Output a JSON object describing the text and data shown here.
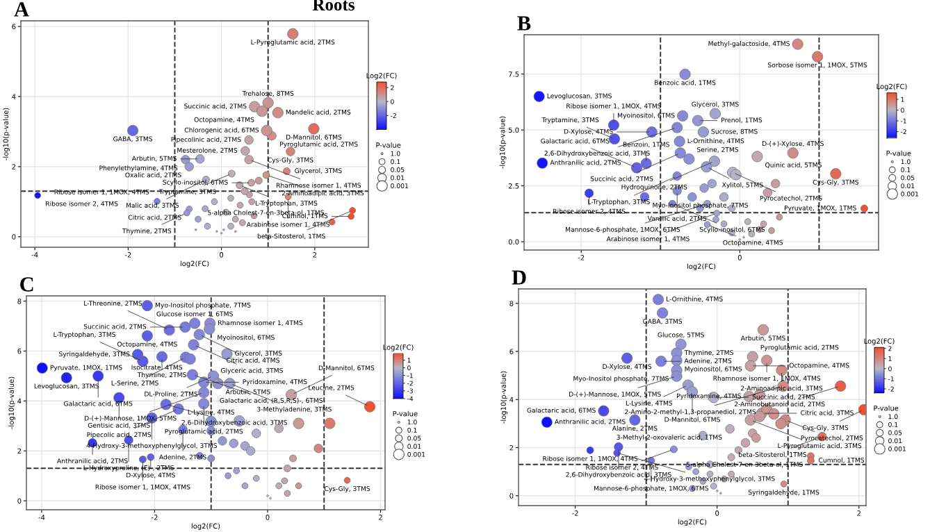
{
  "chart_data": [
    {
      "type": "bubble",
      "title": "A",
      "subtitle": "Roots",
      "xlabel": "log2(FC)",
      "ylabel": "-log10(p-value)",
      "clabel": "Log2(FC)",
      "legend_title": "P-value",
      "grid": true,
      "marker": "circle",
      "xlim": [
        -4.3,
        3.15
      ],
      "ylim": [
        -0.3,
        6.16
      ],
      "xticks": [
        -4,
        -2,
        0,
        2
      ],
      "yticks": [
        0,
        2,
        4,
        6
      ],
      "clim": [
        -4.0,
        2.8
      ],
      "cticks": [
        -2,
        0,
        2
      ],
      "size_legend": [
        {
          "value": 0.1,
          "label": "1.0"
        },
        {
          "value": 1,
          "label": "0.1"
        },
        {
          "value": 1.3,
          "label": "0.05"
        },
        {
          "value": 2,
          "label": "0.01"
        },
        {
          "value": 3,
          "label": "0.001"
        }
      ],
      "ref_lines": [
        {
          "axis": "x",
          "value": -1,
          "line_style": "dashed",
          "color": "#333333"
        },
        {
          "axis": "x",
          "value": 1,
          "line_style": "dashed",
          "color": "#333333"
        },
        {
          "axis": "y",
          "value": 1.3,
          "line_style": "dashed",
          "color": "#333333"
        }
      ],
      "series": [
        {
          "x": [
            0.0,
            0.05,
            -0.1,
            -0.55,
            0.3,
            -1.38,
            -0.69,
            -0.74,
            -3.94,
            1.43,
            2.81,
            2.78,
            2.37,
            0.2,
            0.3,
            -0.3,
            -0.5,
            -0.35,
            0.1,
            0.4,
            0.6,
            0.7,
            0.2,
            -0.15,
            0.65,
            0.45,
            1.4,
            0.22,
            -0.33,
            0.96,
            0.39,
            0.64,
            0.5,
            0.8,
            1.08,
            0.59,
            0.51,
            1.48,
            -0.46,
            0.59,
            -0.77,
            -0.69,
            1.53,
            1.0,
            0.71,
            0.87,
            1.21,
            0.97,
            1.98,
            -1.9
          ],
          "values": [
            0.1,
            0.2,
            0.15,
            0.2,
            0.15,
            1.01,
            0.79,
            0.68,
            1.18,
            1.14,
            0.75,
            0.58,
            0.42,
            0.3,
            0.5,
            0.3,
            0.5,
            0.8,
            0.7,
            0.9,
            1.2,
            0.6,
            1.1,
            1.0,
            1.0,
            0.4,
            1.87,
            1.8,
            1.63,
            1.76,
            1.47,
            1.54,
            1.3,
            1.6,
            2.88,
            2.76,
            2.45,
            2.43,
            2.22,
            2.2,
            2.2,
            2.0,
            5.79,
            3.82,
            3.71,
            3.58,
            3.54,
            3.03,
            3.08,
            3.03
          ],
          "cvalues": [
            0.0,
            0.05,
            -0.1,
            -0.55,
            0.3,
            -1.38,
            -0.69,
            -0.74,
            -3.94,
            1.43,
            2.81,
            2.78,
            2.37,
            0.2,
            0.3,
            -0.3,
            -0.5,
            -0.35,
            0.1,
            0.4,
            0.6,
            0.7,
            0.2,
            -0.15,
            0.65,
            0.45,
            1.4,
            0.22,
            -0.33,
            0.96,
            0.39,
            0.64,
            0.5,
            0.8,
            1.08,
            0.59,
            0.51,
            1.48,
            -0.46,
            0.59,
            -0.77,
            -0.69,
            1.53,
            1.0,
            0.71,
            0.87,
            1.21,
            0.97,
            1.98,
            -1.9
          ],
          "sizes": [
            0.1,
            0.1,
            0.1,
            0.1,
            0.1,
            1,
            1,
            1,
            1,
            1,
            1,
            1,
            1,
            1,
            1,
            1,
            1,
            1,
            1,
            1,
            1,
            1,
            1,
            1,
            1,
            1,
            1.3,
            1.3,
            1.3,
            1.3,
            1.3,
            1.3,
            1.3,
            1.3,
            2,
            2,
            2,
            2,
            2,
            2,
            2,
            2,
            3,
            3,
            3,
            3,
            3,
            3,
            3,
            3
          ]
        }
      ],
      "annotations": [
        {
          "text": "L-Pyroglutamic acid, 2TMS",
          "x": 1.53,
          "y": 5.79
        },
        {
          "text": "Trehalose, 8TMS",
          "x": 1.0,
          "y": 3.82
        },
        {
          "text": "Succinic acid, 2TMS",
          "x": 0.71,
          "y": 3.71
        },
        {
          "text": "Octopamine, 4TMS",
          "x": 0.87,
          "y": 3.58
        },
        {
          "text": "Mandelic acid, 2TMS",
          "x": 1.21,
          "y": 3.54
        },
        {
          "text": "Chlorogenic acid, 6TMS",
          "x": 0.97,
          "y": 3.03
        },
        {
          "text": "D-Mannitol, 6TMS",
          "x": 1.98,
          "y": 3.08
        },
        {
          "text": "Pyroglutamic acid, 2TMS",
          "x": 1.08,
          "y": 2.88
        },
        {
          "text": "Pipecolinic acid, 2TMS",
          "x": 0.59,
          "y": 2.76
        },
        {
          "text": "Mesterolone, 2TMS",
          "x": 0.51,
          "y": 2.45
        },
        {
          "text": "Cys-Gly, 3TMS",
          "x": 1.48,
          "y": 2.43
        },
        {
          "text": "Arbutin, 5TMS",
          "x": -0.46,
          "y": 2.22
        },
        {
          "text": "Rhamnose isomer 1, 4TMS",
          "x": 0.59,
          "y": 2.2
        },
        {
          "text": "Phenylethylamine, 4TMS",
          "x": -0.77,
          "y": 2.2
        },
        {
          "text": "Oxalic acid, 2TMS",
          "x": -0.69,
          "y": 2.0
        },
        {
          "text": "Glycerol, 3TMS",
          "x": 1.4,
          "y": 1.87
        },
        {
          "text": "Tryptamine, 3TMS",
          "x": 0.22,
          "y": 1.8
        },
        {
          "text": "Malic acid, 3TMS",
          "x": -0.33,
          "y": 1.63
        },
        {
          "text": "2-Aminoadipic acid, 3TMS",
          "x": 0.96,
          "y": 1.76
        },
        {
          "text": "L-Tryptophan, 3TMS",
          "x": 0.39,
          "y": 1.47
        },
        {
          "text": "Scyllo-inositol, 6TMS",
          "x": 0.64,
          "y": 1.54
        },
        {
          "text": "Ribose isomer 1, 1MOX, 4TMS",
          "x": -1.38,
          "y": 1.01
        },
        {
          "text": "Citric acid, 2TMS",
          "x": -0.69,
          "y": 0.79
        },
        {
          "text": "Thymine, 2TMS",
          "x": -0.74,
          "y": 0.68
        },
        {
          "text": "Ribose isomer 2, 4TMS",
          "x": -3.94,
          "y": 1.18
        },
        {
          "text": "GABA, 3TMS",
          "x": -1.9,
          "y": 3.03
        },
        {
          "text": "Arabinose isomer 1, 4TMS",
          "x": 1.43,
          "y": 1.14
        },
        {
          "text": "beta-Sitosterol, 1TMS",
          "x": 2.81,
          "y": 0.75
        },
        {
          "text": "Cumnol, 1TMS",
          "x": 2.78,
          "y": 0.58
        },
        {
          "text": "5-alpha Cholest-7-en-3beta-ol, 1TMS",
          "x": 2.37,
          "y": 0.42
        }
      ]
    },
    {
      "type": "bubble",
      "title": "B",
      "xlabel": "log2(FC)",
      "ylabel": "-log10(p-value)",
      "clabel": "Log2(FC)",
      "legend_title": "P-value",
      "grid": true,
      "marker": "circle",
      "xlim": [
        -2.72,
        1.75
      ],
      "ylim": [
        -0.37,
        9.26
      ],
      "xticks": [
        -2,
        0
      ],
      "yticks": [
        {
          "value": 0,
          "label": "0.0"
        },
        {
          "value": 2.5,
          "label": "2.5"
        },
        {
          "value": 5,
          "label": "5.0"
        },
        {
          "value": 7.5,
          "label": "7.5"
        }
      ],
      "clim": [
        -2.6,
        1.6
      ],
      "cticks": [
        -2,
        -1,
        0,
        1
      ],
      "size_legend": [
        {
          "value": 0.1,
          "label": "1.0"
        },
        {
          "value": 1,
          "label": "0.1"
        },
        {
          "value": 1.3,
          "label": "0.05"
        },
        {
          "value": 2,
          "label": "0.01"
        },
        {
          "value": 3,
          "label": "0.001"
        }
      ],
      "ref_lines": [
        {
          "axis": "x",
          "value": -1,
          "line_style": "dashed",
          "color": "#333333"
        },
        {
          "axis": "x",
          "value": 1,
          "line_style": "dashed",
          "color": "#333333"
        },
        {
          "axis": "y",
          "value": 1.3,
          "line_style": "dashed",
          "color": "#333333"
        }
      ],
      "series": [
        {
          "x": [
            0.0,
            0.05,
            -0.29,
            -0.41,
            0.15,
            0.25,
            0.3,
            0.5,
            0.4,
            -0.1,
            -0.2,
            -0.3,
            0.1,
            -0.41,
            1.57,
            -0.85,
            -0.5,
            -0.1,
            -0.79,
            -1.9,
            -0.79,
            -1.2,
            -0.6,
            -0.45,
            -0.35,
            0.35,
            0.45,
            -0.2,
            0.73,
            0.98,
            -0.69,
            -2.53,
            -0.72,
            -0.31,
            -1.59,
            -0.53,
            -0.79,
            -0.46,
            -1.11,
            -1.58,
            -0.76,
            -0.75,
            -0.32,
            0.67,
            -1.18,
            -0.64,
            -2.49,
            0.22,
            -0.42,
            -1.3,
            -0.09,
            1.21,
            -0.05
          ],
          "values": [
            0.1,
            0.2,
            1.28,
            0.77,
            0.35,
            0.55,
            0.8,
            1.1,
            0.5,
            0.4,
            0.8,
            1.0,
            0.9,
            1.7,
            1.49,
            1.7,
            1.5,
            1.5,
            2.94,
            2.17,
            2.28,
            2.01,
            2.0,
            2.4,
            2.6,
            2.2,
            2.6,
            2.0,
            8.84,
            8.28,
            7.49,
            6.5,
            5.63,
            5.73,
            5.22,
            5.42,
            5.11,
            4.91,
            4.91,
            4.6,
            4.49,
            3.97,
            3.6,
            3.97,
            3.5,
            3.7,
            3.52,
            3.81,
            3.35,
            3.31,
            3.1,
            3.04,
            3.0
          ],
          "cvalues": [
            0.0,
            0.05,
            -0.29,
            -0.41,
            0.15,
            0.25,
            0.3,
            0.5,
            0.4,
            -0.1,
            -0.2,
            -0.3,
            0.1,
            -0.41,
            1.57,
            -0.85,
            -0.5,
            -0.1,
            -0.79,
            -1.9,
            -0.79,
            -1.2,
            -0.6,
            -0.45,
            -0.35,
            0.35,
            0.45,
            -0.2,
            0.73,
            0.98,
            -0.69,
            -2.53,
            -0.72,
            -0.31,
            -1.59,
            -0.53,
            -0.79,
            -0.46,
            -1.11,
            -1.58,
            -0.76,
            -0.75,
            -0.32,
            0.67,
            -1.18,
            -0.64,
            -2.49,
            0.22,
            -0.42,
            -1.3,
            -0.09,
            1.21,
            -0.05
          ],
          "sizes": [
            0.1,
            0.1,
            1,
            1,
            1,
            1,
            1,
            1,
            1,
            1,
            1,
            1,
            1,
            1.3,
            1.3,
            1.3,
            1.3,
            1.3,
            2,
            2,
            2,
            2,
            2,
            2,
            2,
            2,
            2,
            2,
            3,
            3,
            3,
            3,
            3,
            3,
            3,
            3,
            3,
            3,
            3,
            3,
            3,
            3,
            3,
            3,
            3,
            3,
            3,
            3,
            3,
            3,
            3,
            3,
            3
          ]
        }
      ],
      "annotations": [
        {
          "text": "Methyl-galactoside, 4TMS",
          "x": 0.73,
          "y": 8.84
        },
        {
          "text": "Sorbose isomer 1, 1MOX, 5TMS",
          "x": 0.98,
          "y": 8.28
        },
        {
          "text": "Benzoic acid, 1TMS",
          "x": -0.69,
          "y": 7.49
        },
        {
          "text": "Levoglucosan, 3TMS",
          "x": -2.53,
          "y": 6.5
        },
        {
          "text": "Myoinositol, 6TMS",
          "x": -0.72,
          "y": 5.63
        },
        {
          "text": "Glycerol, 3TMS",
          "x": -0.31,
          "y": 5.73
        },
        {
          "text": "Ribose isomer 1, 1MOX, 4TMS",
          "x": -1.59,
          "y": 5.22
        },
        {
          "text": "Prenol, 1TMS",
          "x": -0.53,
          "y": 5.42
        },
        {
          "text": "2,6-Dihydroxybenzoic acid, 3TMS",
          "x": -0.79,
          "y": 5.11
        },
        {
          "text": "Sucrose, 8TMS",
          "x": -0.46,
          "y": 4.91
        },
        {
          "text": "D-Xylose, 4TMS",
          "x": -1.11,
          "y": 4.91
        },
        {
          "text": "Tryptamine, 3TMS",
          "x": -1.58,
          "y": 4.6
        },
        {
          "text": "L-Ornithine, 4TMS",
          "x": -0.76,
          "y": 4.49
        },
        {
          "text": "Succinic acid, 2TMS",
          "x": -0.75,
          "y": 3.97
        },
        {
          "text": "Hydroquinone, 2TMS",
          "x": -0.32,
          "y": 3.6
        },
        {
          "text": "D-(+)-Xylose, 4TMS",
          "x": 0.67,
          "y": 3.97
        },
        {
          "text": "Benzoin, 1TMS",
          "x": -1.18,
          "y": 3.5
        },
        {
          "text": "Serine, 2TMS",
          "x": -0.64,
          "y": 3.7
        },
        {
          "text": "Anthranilic acid, 2TMS",
          "x": -2.49,
          "y": 3.52
        },
        {
          "text": "Quinic acid, 5TMS",
          "x": 0.22,
          "y": 3.81
        },
        {
          "text": "Xylitol, 5TMS",
          "x": -0.42,
          "y": 3.35
        },
        {
          "text": "Galactaric acid, 6TMS",
          "x": -1.3,
          "y": 3.31
        },
        {
          "text": "Pyrocatechol, 2TMS",
          "x": -0.09,
          "y": 3.1
        },
        {
          "text": "L-Tryptophan, 3TMS",
          "x": -0.79,
          "y": 2.94
        },
        {
          "text": "Cys-Gly, 3TMS",
          "x": 1.21,
          "y": 3.04
        },
        {
          "text": "Ribose isomer 2, 4TMS",
          "x": -1.9,
          "y": 2.17
        },
        {
          "text": "Vanillic acid, 2TMS",
          "x": -0.79,
          "y": 2.28
        },
        {
          "text": "Mannose-6-phosphate, 1MOX, 6TMS",
          "x": -0.41,
          "y": 1.7
        },
        {
          "text": "Myo-Inositol phosphate, 7TMS",
          "x": -1.2,
          "y": 2.01
        },
        {
          "text": "Pyruvate, 1MOX, 1TMS",
          "x": 1.57,
          "y": 1.49
        },
        {
          "text": "Scyllo-inositol, 6TMS",
          "x": -0.85,
          "y": 1.7
        },
        {
          "text": "Arabinose isomer 1, 4TMS",
          "x": -0.29,
          "y": 1.28
        },
        {
          "text": "Octopamine, 4TMS",
          "x": -0.41,
          "y": 0.77
        }
      ]
    },
    {
      "type": "bubble",
      "title": "C",
      "xlabel": "log2(FC)",
      "ylabel": "-log10(p-value)",
      "clabel": "Log2(FC)",
      "legend_title": "P-value",
      "grid": true,
      "marker": "circle",
      "xlim": [
        -4.27,
        2.08
      ],
      "ylim": [
        -0.36,
        8.21
      ],
      "xticks": [
        -4,
        -2,
        0,
        2
      ],
      "yticks": [
        0,
        2,
        4,
        6,
        8
      ],
      "clim": [
        -4.0,
        1.85
      ],
      "cticks": [
        -4,
        -3,
        -2,
        -1,
        0,
        1
      ],
      "size_legend": [
        {
          "value": 0.1,
          "label": "1.0"
        },
        {
          "value": 1,
          "label": "0.1"
        },
        {
          "value": 1.3,
          "label": "0.05"
        },
        {
          "value": 2,
          "label": "0.01"
        },
        {
          "value": 3,
          "label": "0.001"
        }
      ],
      "ref_lines": [
        {
          "axis": "x",
          "value": -1,
          "line_style": "dashed",
          "color": "#333333"
        },
        {
          "axis": "x",
          "value": 1,
          "line_style": "dashed",
          "color": "#333333"
        },
        {
          "axis": "y",
          "value": 1.3,
          "line_style": "dashed",
          "color": "#333333"
        }
      ],
      "series": [
        {
          "x": [
            0.0,
            0.05,
            1.41,
            0.3,
            0.2,
            -0.2,
            -0.4,
            -0.55,
            -0.7,
            0.55,
            0.35,
            -2.07,
            -2.21,
            0.45,
            0.35,
            -1.0,
            -1.2,
            -1.5,
            -2.46,
            -3.1,
            0.2,
            0.9,
            -0.8,
            -0.6,
            -0.4,
            -0.2,
            -0.3,
            -1.0,
            -2.13,
            -1.29,
            -1.02,
            -1.46,
            -1.03,
            -1.74,
            -1.21,
            -2.13,
            -1.31,
            -2.3,
            -1.87,
            -1.45,
            -3.99,
            -0.72,
            -2.21,
            -1.37,
            -3.0,
            -1.33,
            -3.56,
            -0.96,
            -1.13,
            -0.88,
            -0.67,
            0.42,
            -1.13,
            -2.63,
            -1.13,
            -1.8,
            1.81,
            -1.58,
            -2.05,
            -1.0,
            0.55,
            1.1,
            -0.5
          ],
          "values": [
            0.2,
            0.1,
            0.82,
            0.8,
            0.6,
            0.9,
            0.6,
            1.2,
            1.0,
            0.6,
            0.3,
            1.75,
            1.66,
            1.7,
            1.3,
            1.7,
            1.8,
            2.86,
            2.43,
            2.32,
            2.9,
            2.1,
            2.4,
            2.3,
            2.2,
            2.7,
            2.0,
            2.8,
            7.82,
            7.11,
            7.11,
            6.96,
            6.88,
            6.84,
            6.66,
            6.61,
            6.25,
            5.86,
            5.77,
            5.75,
            5.32,
            5.89,
            5.59,
            5.68,
            5.0,
            5.05,
            4.93,
            5.0,
            4.75,
            4.7,
            4.7,
            4.25,
            4.34,
            4.13,
            3.89,
            3.86,
            3.77,
            3.68,
            3.32,
            3.18,
            3.1,
            3.1,
            3.2
          ],
          "cvalues": [
            0.0,
            0.05,
            1.41,
            0.3,
            0.2,
            -0.2,
            -0.4,
            -0.55,
            -0.7,
            0.55,
            0.35,
            -2.07,
            -2.21,
            0.45,
            0.35,
            -1.0,
            -1.2,
            -1.5,
            -2.46,
            -3.1,
            0.2,
            0.9,
            -0.8,
            -0.6,
            -0.4,
            -0.2,
            -0.3,
            -1.0,
            -2.13,
            -1.29,
            -1.02,
            -1.46,
            -1.03,
            -1.74,
            -1.21,
            -2.13,
            -1.31,
            -2.3,
            -1.87,
            -1.45,
            -3.99,
            -0.72,
            -2.21,
            -1.37,
            -3.0,
            -1.33,
            -3.56,
            -0.96,
            -1.13,
            -0.88,
            -0.67,
            0.42,
            -1.13,
            -2.63,
            -1.13,
            -1.8,
            1.81,
            -1.58,
            -2.05,
            -1.0,
            0.55,
            1.1,
            -0.5
          ],
          "sizes": [
            0.1,
            0.1,
            1,
            1,
            1,
            1,
            1,
            1,
            1,
            1,
            1,
            1.3,
            1.3,
            1.3,
            1.3,
            1.3,
            1.3,
            2,
            2,
            2,
            2,
            2,
            2,
            2,
            2,
            2,
            2,
            2,
            3,
            3,
            3,
            3,
            3,
            3,
            3,
            3,
            3,
            3,
            3,
            3,
            3,
            3,
            3,
            3,
            3,
            3,
            3,
            3,
            3,
            3,
            3,
            3,
            3,
            3,
            3,
            3,
            3,
            3,
            3,
            3,
            3,
            3,
            3
          ]
        }
      ],
      "annotations": [
        {
          "text": "Myo-Inositol phosphate, 7TMS",
          "x": -2.13,
          "y": 7.82
        },
        {
          "text": "Glucose isomer 1, 6TMS",
          "x": -1.29,
          "y": 7.11
        },
        {
          "text": "Rhamnose isomer 1, 4TMS",
          "x": -1.02,
          "y": 7.11
        },
        {
          "text": "Succinic acid, 2TMS",
          "x": -1.46,
          "y": 6.96
        },
        {
          "text": "Myoinositol, 6TMS",
          "x": -1.03,
          "y": 6.88
        },
        {
          "text": "L-Threonine, 2TMS",
          "x": -1.74,
          "y": 6.84
        },
        {
          "text": "Citric acid, 4TMS",
          "x": -1.21,
          "y": 6.66
        },
        {
          "text": "Octopamine, 4TMS",
          "x": -2.13,
          "y": 6.61
        },
        {
          "text": "Glyceric acid, 3TMS",
          "x": -1.31,
          "y": 6.25
        },
        {
          "text": "Syringaldehyde, 3TMS",
          "x": -2.3,
          "y": 5.86
        },
        {
          "text": "Thymine, 2TMS",
          "x": -1.87,
          "y": 5.77
        },
        {
          "text": "L-Serine, 2TMS",
          "x": -1.45,
          "y": 5.75
        },
        {
          "text": "Pyruvate, 1MOX, 1TMS",
          "x": -3.99,
          "y": 5.32
        },
        {
          "text": "Glycerol, 3TMS",
          "x": -0.72,
          "y": 5.89
        },
        {
          "text": "L-Tryptophan, 3TMS",
          "x": -2.21,
          "y": 5.59
        },
        {
          "text": "Isocitrate, 4TMS",
          "x": -1.37,
          "y": 5.68
        },
        {
          "text": "Galactaric acid, 6TMS",
          "x": -3.0,
          "y": 5.0
        },
        {
          "text": "Galactaric acid, (R,S,R,S)-, 6TMS",
          "x": -1.33,
          "y": 5.05
        },
        {
          "text": "Levoglucosan, 3TMS",
          "x": -3.56,
          "y": 4.93
        },
        {
          "text": "DL-Proline, 2TMS",
          "x": -0.96,
          "y": 5.0
        },
        {
          "text": "Pyridoxamine, 4TMS",
          "x": -1.13,
          "y": 4.75
        },
        {
          "text": "Arbutin, 5TMS",
          "x": -0.88,
          "y": 4.7
        },
        {
          "text": "3-Methyladenine, 3TMS",
          "x": -0.67,
          "y": 4.7
        },
        {
          "text": "D-Mannitol, 6TMS",
          "x": 0.42,
          "y": 4.25
        },
        {
          "text": "D-(+)-Mannose, 1MOX, 5TMS",
          "x": -1.13,
          "y": 4.34
        },
        {
          "text": "Gentisic acid, 3TMS",
          "x": -2.63,
          "y": 4.13
        },
        {
          "text": "Pyroglutamic acid, 2TMS",
          "x": -1.13,
          "y": 3.89
        },
        {
          "text": "2,6-Dihydroxybenzoic acid, 3TMS",
          "x": -1.8,
          "y": 3.86
        },
        {
          "text": "Leucine, 2TMS",
          "x": 1.81,
          "y": 3.77
        },
        {
          "text": "Pipecolic acid, 2TMS",
          "x": -1.58,
          "y": 3.68
        },
        {
          "text": "4-Hydroxy-3-methoxyphenylglycol, 3TMS",
          "x": -2.05,
          "y": 3.32
        },
        {
          "text": "L-Lysine, 4TMS",
          "x": -1.0,
          "y": 3.18
        },
        {
          "text": "Adenine, 2TMS",
          "x": -1.5,
          "y": 2.86
        },
        {
          "text": "L-Hydroxyproline, (E)-, 2TMS",
          "x": -2.46,
          "y": 2.43
        },
        {
          "text": "Anthranilic acid, 2TMS",
          "x": -3.1,
          "y": 2.32
        },
        {
          "text": "D-Xylose, 4TMS",
          "x": -2.07,
          "y": 1.75
        },
        {
          "text": "Ribose isomer 1, 1MOX, 4TMS",
          "x": -2.21,
          "y": 1.66
        },
        {
          "text": "Cys-Gly, 3TMS",
          "x": 1.41,
          "y": 0.82
        }
      ]
    },
    {
      "type": "bubble",
      "title": "D",
      "xlabel": "log2(FC)",
      "ylabel": "-log10(p-value)",
      "clabel": "Log2(FC)",
      "legend_title": "P-value",
      "grid": true,
      "marker": "circle",
      "xlim": [
        -2.8,
        2.1
      ],
      "ylim": [
        -0.41,
        8.6
      ],
      "xticks": [
        -2,
        0,
        2
      ],
      "yticks": [
        0,
        2,
        4,
        6,
        8
      ],
      "clim": [
        -2.4,
        2.1
      ],
      "cticks": [
        -2,
        -1,
        0,
        1,
        2
      ],
      "size_legend": [
        {
          "value": 0.1,
          "label": "1.0"
        },
        {
          "value": 1,
          "label": "0.1"
        },
        {
          "value": 1.3,
          "label": "0.05"
        },
        {
          "value": 2,
          "label": "0.01"
        },
        {
          "value": 3,
          "label": "0.001"
        }
      ],
      "ref_lines": [
        {
          "axis": "x",
          "value": -1,
          "line_style": "dashed",
          "color": "#333333"
        },
        {
          "axis": "x",
          "value": 1,
          "line_style": "dashed",
          "color": "#333333"
        },
        {
          "axis": "y",
          "value": 1.3,
          "line_style": "dashed",
          "color": "#333333"
        }
      ],
      "series": [
        {
          "x": [
            0.0,
            0.05,
            0.94,
            -0.1,
            -0.2,
            -0.05,
            -0.3,
            -0.35,
            0.2,
            0.1,
            -0.4,
            -1.79,
            -0.61,
            1.32,
            -1.41,
            1.32,
            -0.93,
            0.2,
            0.3,
            -0.1,
            0.18,
            -1.39,
            1.48,
            0.4,
            0.5,
            0.55,
            -0.2,
            -0.83,
            -0.77,
            0.65,
            -0.51,
            -0.57,
            0.5,
            -1.27,
            -0.79,
            -0.57,
            0.7,
            0.47,
            -0.57,
            0.91,
            -0.57,
            0.93,
            -0.41,
            -0.35,
            1.74,
            -0.05,
            0.45,
            -1.6,
            0.63,
            2.07,
            0.47,
            0.96,
            -2.4,
            -1.16,
            0.6,
            0.7,
            0.8,
            0.9,
            0.6
          ],
          "values": [
            0.2,
            0.1,
            0.49,
            0.9,
            0.6,
            0.4,
            1.0,
            0.3,
            0.9,
            0.7,
            1.2,
            1.89,
            1.93,
            1.65,
            1.78,
            1.46,
            1.46,
            1.6,
            1.9,
            1.3,
            2.78,
            2.03,
            2.46,
            2.2,
            2.6,
            2.4,
            2.5,
            8.16,
            7.6,
            6.9,
            6.3,
            5.93,
            5.78,
            5.72,
            5.59,
            5.62,
            5.63,
            5.4,
            5.22,
            5.22,
            4.97,
            4.56,
            4.6,
            4.32,
            4.56,
            4.09,
            4.13,
            3.53,
            3.43,
            3.58,
            3.15,
            3.15,
            3.06,
            3.15,
            3.3,
            3.6,
            3.4,
            3.0,
            4.2
          ],
          "cvalues": [
            0.0,
            0.05,
            0.94,
            -0.1,
            -0.2,
            -0.05,
            -0.3,
            -0.35,
            0.2,
            0.1,
            -0.4,
            -1.79,
            -0.61,
            1.32,
            -1.41,
            1.32,
            -0.93,
            0.2,
            0.3,
            -0.1,
            0.18,
            -1.39,
            1.48,
            0.4,
            0.5,
            0.55,
            -0.2,
            -0.83,
            -0.77,
            0.65,
            -0.51,
            -0.57,
            0.5,
            -1.27,
            -0.79,
            -0.57,
            0.7,
            0.47,
            -0.57,
            0.91,
            -0.57,
            0.93,
            -0.41,
            -0.35,
            1.74,
            -0.05,
            0.45,
            -1.6,
            0.63,
            2.07,
            0.47,
            0.96,
            -2.4,
            -1.16,
            0.6,
            0.7,
            0.8,
            0.9,
            0.6
          ],
          "sizes": [
            0.1,
            0.1,
            1,
            1,
            1,
            1,
            1,
            1,
            1,
            1,
            1,
            1.3,
            1.3,
            1.3,
            1.3,
            1.3,
            1.3,
            1.3,
            1.3,
            1.3,
            2,
            2,
            2,
            2,
            2,
            2,
            2,
            3,
            3,
            3,
            3,
            3,
            3,
            3,
            3,
            3,
            3,
            3,
            3,
            3,
            3,
            3,
            3,
            3,
            3,
            3,
            3,
            3,
            3,
            3,
            3,
            3,
            3,
            3,
            3,
            3,
            3,
            3,
            3
          ]
        }
      ],
      "annotations": [
        {
          "text": "L-Ornithine, 4TMS",
          "x": -0.83,
          "y": 8.16
        },
        {
          "text": "GABA, 3TMS",
          "x": -0.77,
          "y": 7.6
        },
        {
          "text": "Arbutin, 5TMS",
          "x": 0.65,
          "y": 6.9
        },
        {
          "text": "Glucose, 5TMS",
          "x": -0.51,
          "y": 6.3
        },
        {
          "text": "Thymine, 2TMS",
          "x": -0.57,
          "y": 5.93
        },
        {
          "text": "Pyroglutamic acid, 2TMS",
          "x": 0.5,
          "y": 5.78
        },
        {
          "text": "D-Xylose, 4TMS",
          "x": -1.27,
          "y": 5.72
        },
        {
          "text": "Adenine, 2TMS",
          "x": -0.79,
          "y": 5.59
        },
        {
          "text": "Myoinositol, 6TMS",
          "x": -0.57,
          "y": 5.62
        },
        {
          "text": "Rhamnose isomer 1, 1MOX, 4TMS",
          "x": 0.7,
          "y": 5.63
        },
        {
          "text": "Octopamine, 4TMS",
          "x": 0.47,
          "y": 5.4
        },
        {
          "text": "Myo-Inositol phosphate, 7TMS",
          "x": -0.57,
          "y": 5.22
        },
        {
          "text": "2-Aminoadipic acid, 3TMS",
          "x": 0.91,
          "y": 5.22
        },
        {
          "text": "D-(+)-Mannose, 1MOX, 5TMS",
          "x": -0.57,
          "y": 4.97
        },
        {
          "text": "2-Amino-2-methyl-1,3-propanediol, 2TMS",
          "x": 0.93,
          "y": 4.56
        },
        {
          "text": "L-Lysine, 4TMS",
          "x": -0.41,
          "y": 4.6
        },
        {
          "text": "D-Mannitol, 6TMS",
          "x": -0.35,
          "y": 4.32
        },
        {
          "text": "2-Aminobutanoic acid, 2TMS",
          "x": 1.74,
          "y": 4.56
        },
        {
          "text": "Succinic acid, 2TMS",
          "x": -0.05,
          "y": 4.09
        },
        {
          "text": "Pyridoxamine, 4TMS",
          "x": 0.45,
          "y": 4.13
        },
        {
          "text": "Galactaric acid, 6TMS",
          "x": -1.6,
          "y": 3.53
        },
        {
          "text": "Citric acid, 3TMS",
          "x": 0.63,
          "y": 3.43
        },
        {
          "text": "Cys-Gly, 3TMS",
          "x": 2.07,
          "y": 3.58
        },
        {
          "text": "L-Pyroglutamic acid, 3TMS",
          "x": 0.47,
          "y": 3.15
        },
        {
          "text": "Pyrocatechol, 2TMS",
          "x": 0.96,
          "y": 3.15
        },
        {
          "text": "Anthranilic acid, 2TMS",
          "x": -2.4,
          "y": 3.06
        },
        {
          "text": "Alanine, 2TMS",
          "x": -1.16,
          "y": 3.15
        },
        {
          "text": "3-Methyl-2-oxovaleric acid, 1TMS",
          "x": 0.18,
          "y": 2.78
        },
        {
          "text": "2,6-Dihydroxybenzoic acid, 3TMS",
          "x": -1.39,
          "y": 2.03
        },
        {
          "text": "beta-Sitosterol, 1TMS",
          "x": 1.48,
          "y": 2.46
        },
        {
          "text": "Ribose isomer 1, 1MOX, 4TMS",
          "x": -1.79,
          "y": 1.89
        },
        {
          "text": "Ribose isomer 2, 4TMS",
          "x": -0.61,
          "y": 1.93
        },
        {
          "text": "5-alpha Cholest-7-en-3beta-ol, 1TMS",
          "x": 1.32,
          "y": 1.65
        },
        {
          "text": "4-Hydroxy-3-methoxyphenylglycol, 3TMS",
          "x": -1.41,
          "y": 1.78
        },
        {
          "text": "Cumnol, 1TMS",
          "x": 1.32,
          "y": 1.46
        },
        {
          "text": "Mannose-6-phosphate, 1MOX, 6TMS",
          "x": -0.93,
          "y": 1.46
        },
        {
          "text": "Syringaldehyde, 1TMS",
          "x": 0.94,
          "y": 0.49
        }
      ]
    }
  ]
}
